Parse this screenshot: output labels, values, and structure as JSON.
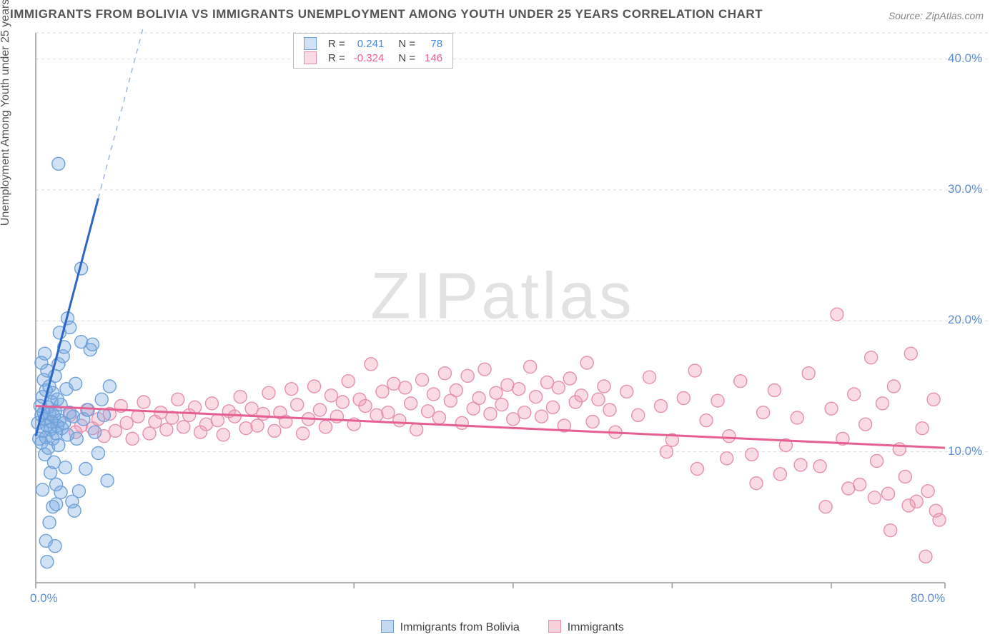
{
  "title": "IMMIGRANTS FROM BOLIVIA VS IMMIGRANTS UNEMPLOYMENT AMONG YOUTH UNDER 25 YEARS CORRELATION CHART",
  "source_label": "Source: ZipAtlas.com",
  "y_axis_label": "Unemployment Among Youth under 25 years",
  "watermark": "ZIPatlas",
  "chart": {
    "type": "scatter",
    "background_color": "#ffffff",
    "grid_color": "#d9d9d9",
    "axis_line_color": "#999999",
    "xlim": [
      0,
      80
    ],
    "ylim": [
      0,
      42
    ],
    "x_ticks": [
      0,
      14,
      28,
      42,
      56,
      70,
      80
    ],
    "x_tick_labels": {
      "0": "0.0%",
      "80": "80.0%"
    },
    "y_grid": [
      10,
      20,
      30,
      40
    ],
    "y_tick_labels": {
      "10": "10.0%",
      "20": "20.0%",
      "30": "30.0%",
      "40": "40.0%"
    },
    "marker_radius": 9,
    "marker_stroke_width": 1.4,
    "series": [
      {
        "name": "Immigrants from Bolivia",
        "fill_color": "rgba(120,170,225,0.35)",
        "stroke_color": "#6fa0d8",
        "stat_color": "#4a8ae0",
        "R": "0.241",
        "N": "78",
        "trend": {
          "slope": 3.3,
          "intercept": 11.2,
          "solid_xmax": 5.5,
          "dash_xmax": 34
        },
        "trend_solid_color": "#2d66c4",
        "trend_dash_color": "#9cb8e2",
        "points": [
          [
            0.2,
            12.2
          ],
          [
            0.3,
            11.0
          ],
          [
            0.4,
            13.5
          ],
          [
            0.5,
            10.7
          ],
          [
            0.5,
            12.8
          ],
          [
            0.6,
            14.2
          ],
          [
            0.6,
            11.6
          ],
          [
            0.7,
            13.0
          ],
          [
            0.7,
            15.5
          ],
          [
            0.8,
            12.5
          ],
          [
            0.8,
            9.8
          ],
          [
            0.9,
            11.1
          ],
          [
            0.9,
            14.7
          ],
          [
            1.0,
            12.0
          ],
          [
            1.0,
            16.2
          ],
          [
            1.1,
            13.4
          ],
          [
            1.1,
            10.3
          ],
          [
            1.2,
            12.9
          ],
          [
            1.2,
            15.0
          ],
          [
            1.3,
            11.7
          ],
          [
            1.3,
            8.4
          ],
          [
            1.4,
            13.8
          ],
          [
            1.4,
            12.3
          ],
          [
            1.5,
            14.5
          ],
          [
            1.5,
            11.0
          ],
          [
            1.6,
            9.2
          ],
          [
            1.6,
            12.7
          ],
          [
            1.7,
            15.8
          ],
          [
            1.7,
            13.1
          ],
          [
            1.8,
            11.4
          ],
          [
            1.8,
            7.5
          ],
          [
            1.9,
            12.0
          ],
          [
            1.9,
            14.0
          ],
          [
            2.0,
            16.7
          ],
          [
            2.0,
            10.5
          ],
          [
            2.1,
            12.4
          ],
          [
            2.1,
            19.1
          ],
          [
            2.2,
            13.6
          ],
          [
            2.3,
            11.8
          ],
          [
            2.4,
            17.3
          ],
          [
            2.5,
            18.0
          ],
          [
            2.5,
            12.2
          ],
          [
            2.7,
            14.8
          ],
          [
            2.8,
            20.2
          ],
          [
            2.8,
            11.3
          ],
          [
            3.0,
            13.0
          ],
          [
            3.0,
            19.5
          ],
          [
            3.2,
            6.2
          ],
          [
            3.3,
            12.7
          ],
          [
            3.5,
            15.2
          ],
          [
            3.6,
            11.0
          ],
          [
            3.8,
            7.0
          ],
          [
            4.0,
            18.4
          ],
          [
            4.0,
            24.0
          ],
          [
            4.2,
            12.5
          ],
          [
            4.4,
            8.7
          ],
          [
            4.6,
            13.2
          ],
          [
            4.8,
            17.8
          ],
          [
            5.0,
            18.2
          ],
          [
            5.2,
            11.5
          ],
          [
            5.5,
            9.9
          ],
          [
            5.8,
            14.0
          ],
          [
            6.0,
            12.8
          ],
          [
            6.3,
            7.8
          ],
          [
            6.5,
            15.0
          ],
          [
            2.0,
            32.0
          ],
          [
            1.2,
            4.6
          ],
          [
            0.9,
            3.2
          ],
          [
            1.5,
            5.8
          ],
          [
            2.2,
            6.9
          ],
          [
            0.6,
            7.1
          ],
          [
            1.8,
            6.0
          ],
          [
            2.6,
            8.8
          ],
          [
            3.4,
            5.5
          ],
          [
            1.0,
            1.6
          ],
          [
            0.5,
            16.8
          ],
          [
            1.7,
            2.8
          ],
          [
            0.8,
            17.5
          ]
        ]
      },
      {
        "name": "Immigrants",
        "fill_color": "rgba(240,150,175,0.35)",
        "stroke_color": "#e590af",
        "stat_color": "#e65f92",
        "R": "-0.324",
        "N": "146",
        "trend": {
          "x1": 0,
          "y1": 13.5,
          "x2": 80,
          "y2": 10.3
        },
        "trend_solid_color": "#e65f92",
        "points": [
          [
            3.0,
            12.8
          ],
          [
            3.5,
            11.5
          ],
          [
            4.0,
            12.0
          ],
          [
            4.5,
            13.2
          ],
          [
            5.0,
            11.8
          ],
          [
            5.5,
            12.5
          ],
          [
            6.0,
            11.2
          ],
          [
            6.5,
            12.9
          ],
          [
            7.0,
            11.6
          ],
          [
            7.5,
            13.5
          ],
          [
            8.0,
            12.2
          ],
          [
            8.5,
            11.0
          ],
          [
            9.0,
            12.7
          ],
          [
            9.5,
            13.8
          ],
          [
            10.0,
            11.4
          ],
          [
            10.5,
            12.3
          ],
          [
            11.0,
            13.0
          ],
          [
            11.5,
            11.7
          ],
          [
            12.0,
            12.6
          ],
          [
            12.5,
            14.0
          ],
          [
            13.0,
            11.9
          ],
          [
            13.5,
            12.8
          ],
          [
            14.0,
            13.4
          ],
          [
            14.5,
            11.5
          ],
          [
            15.0,
            12.1
          ],
          [
            15.5,
            13.7
          ],
          [
            16.0,
            12.4
          ],
          [
            16.5,
            11.3
          ],
          [
            17.0,
            13.1
          ],
          [
            17.5,
            12.7
          ],
          [
            18.0,
            14.2
          ],
          [
            18.5,
            11.8
          ],
          [
            19.0,
            13.3
          ],
          [
            19.5,
            12.0
          ],
          [
            20.0,
            12.9
          ],
          [
            20.5,
            14.5
          ],
          [
            21.0,
            11.6
          ],
          [
            21.5,
            13.0
          ],
          [
            22.0,
            12.3
          ],
          [
            22.5,
            14.8
          ],
          [
            23.0,
            13.6
          ],
          [
            23.5,
            11.4
          ],
          [
            24.0,
            12.5
          ],
          [
            24.5,
            15.0
          ],
          [
            25.0,
            13.2
          ],
          [
            25.5,
            11.9
          ],
          [
            26.0,
            14.3
          ],
          [
            26.5,
            12.7
          ],
          [
            27.0,
            13.8
          ],
          [
            27.5,
            15.4
          ],
          [
            28.0,
            12.1
          ],
          [
            28.5,
            14.0
          ],
          [
            29.0,
            13.5
          ],
          [
            29.5,
            16.7
          ],
          [
            30.0,
            12.8
          ],
          [
            30.5,
            14.6
          ],
          [
            31.0,
            13.0
          ],
          [
            31.5,
            15.2
          ],
          [
            32.0,
            12.4
          ],
          [
            32.5,
            14.9
          ],
          [
            33.0,
            13.7
          ],
          [
            33.5,
            11.7
          ],
          [
            34.0,
            15.5
          ],
          [
            34.5,
            13.1
          ],
          [
            35.0,
            14.4
          ],
          [
            35.5,
            12.6
          ],
          [
            36.0,
            16.0
          ],
          [
            36.5,
            13.9
          ],
          [
            37.0,
            14.7
          ],
          [
            37.5,
            12.2
          ],
          [
            38.0,
            15.8
          ],
          [
            38.5,
            13.3
          ],
          [
            39.0,
            14.1
          ],
          [
            39.5,
            16.3
          ],
          [
            40.0,
            12.9
          ],
          [
            40.5,
            14.5
          ],
          [
            41.0,
            13.6
          ],
          [
            41.5,
            15.1
          ],
          [
            42.0,
            12.5
          ],
          [
            42.5,
            14.8
          ],
          [
            43.0,
            13.0
          ],
          [
            43.5,
            16.5
          ],
          [
            44.0,
            14.2
          ],
          [
            44.5,
            12.7
          ],
          [
            45.0,
            15.3
          ],
          [
            45.5,
            13.4
          ],
          [
            46.0,
            14.9
          ],
          [
            46.5,
            12.0
          ],
          [
            47.0,
            15.6
          ],
          [
            47.5,
            13.8
          ],
          [
            48.0,
            14.3
          ],
          [
            48.5,
            16.8
          ],
          [
            49.0,
            12.3
          ],
          [
            49.5,
            14.0
          ],
          [
            50.0,
            15.0
          ],
          [
            50.5,
            13.2
          ],
          [
            51.0,
            11.5
          ],
          [
            52.0,
            14.6
          ],
          [
            53.0,
            12.8
          ],
          [
            54.0,
            15.7
          ],
          [
            55.0,
            13.5
          ],
          [
            56.0,
            10.9
          ],
          [
            57.0,
            14.1
          ],
          [
            58.0,
            16.2
          ],
          [
            59.0,
            12.4
          ],
          [
            60.0,
            13.9
          ],
          [
            61.0,
            11.2
          ],
          [
            62.0,
            15.4
          ],
          [
            63.0,
            9.8
          ],
          [
            64.0,
            13.0
          ],
          [
            65.0,
            14.7
          ],
          [
            66.0,
            10.5
          ],
          [
            67.0,
            12.6
          ],
          [
            68.0,
            16.0
          ],
          [
            69.0,
            8.9
          ],
          [
            70.0,
            13.3
          ],
          [
            70.5,
            20.5
          ],
          [
            71.0,
            11.0
          ],
          [
            72.0,
            14.4
          ],
          [
            72.5,
            7.5
          ],
          [
            73.0,
            12.1
          ],
          [
            73.5,
            17.2
          ],
          [
            74.0,
            9.3
          ],
          [
            74.5,
            13.7
          ],
          [
            75.0,
            6.8
          ],
          [
            75.5,
            15.0
          ],
          [
            76.0,
            10.2
          ],
          [
            76.5,
            8.1
          ],
          [
            77.0,
            17.5
          ],
          [
            77.5,
            6.2
          ],
          [
            78.0,
            11.8
          ],
          [
            78.5,
            7.0
          ],
          [
            79.0,
            14.0
          ],
          [
            79.2,
            5.5
          ],
          [
            79.5,
            4.8
          ],
          [
            78.3,
            2.0
          ],
          [
            76.8,
            5.9
          ],
          [
            75.2,
            4.0
          ],
          [
            73.8,
            6.5
          ],
          [
            71.5,
            7.2
          ],
          [
            69.5,
            5.8
          ],
          [
            67.3,
            9.0
          ],
          [
            65.5,
            8.3
          ],
          [
            63.4,
            7.6
          ],
          [
            60.8,
            9.5
          ],
          [
            58.2,
            8.7
          ],
          [
            55.5,
            10.0
          ]
        ]
      }
    ]
  },
  "bottom_legend": [
    {
      "label": "Immigrants from Bolivia",
      "fill": "rgba(120,170,225,0.45)",
      "stroke": "#6fa0d8"
    },
    {
      "label": "Immigrants",
      "fill": "rgba(240,150,175,0.45)",
      "stroke": "#e590af"
    }
  ]
}
